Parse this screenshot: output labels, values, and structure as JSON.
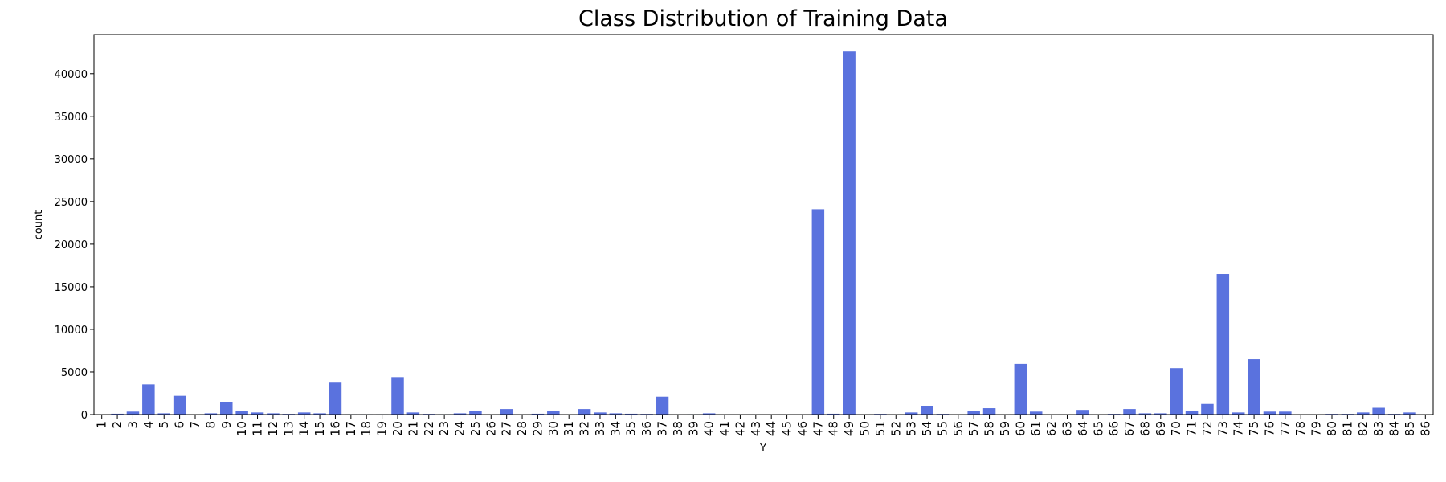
{
  "chart_data": {
    "type": "bar",
    "title": "Class Distribution of Training Data",
    "x_label": "Y",
    "y_label": "count",
    "categories": [
      "1",
      "2",
      "3",
      "4",
      "5",
      "6",
      "7",
      "8",
      "9",
      "10",
      "11",
      "12",
      "13",
      "14",
      "15",
      "16",
      "17",
      "18",
      "19",
      "20",
      "21",
      "22",
      "23",
      "24",
      "25",
      "26",
      "27",
      "28",
      "29",
      "30",
      "31",
      "32",
      "33",
      "34",
      "35",
      "36",
      "37",
      "38",
      "39",
      "40",
      "41",
      "42",
      "43",
      "44",
      "45",
      "46",
      "47",
      "48",
      "49",
      "50",
      "51",
      "52",
      "53",
      "54",
      "55",
      "56",
      "57",
      "58",
      "59",
      "60",
      "61",
      "62",
      "63",
      "64",
      "65",
      "66",
      "67",
      "68",
      "69",
      "70",
      "71",
      "72",
      "73",
      "74",
      "75",
      "76",
      "77",
      "78",
      "79",
      "80",
      "81",
      "82",
      "83",
      "84",
      "85",
      "86"
    ],
    "values": [
      30,
      100,
      350,
      3550,
      150,
      2200,
      30,
      150,
      1500,
      450,
      250,
      150,
      80,
      250,
      150,
      3750,
      50,
      50,
      50,
      4400,
      250,
      80,
      50,
      150,
      450,
      30,
      650,
      30,
      100,
      450,
      30,
      650,
      250,
      150,
      100,
      80,
      2100,
      30,
      50,
      150,
      20,
      20,
      10,
      10,
      10,
      20,
      24100,
      100,
      42600,
      20,
      80,
      30,
      250,
      950,
      80,
      30,
      450,
      750,
      30,
      5950,
      350,
      30,
      30,
      550,
      30,
      80,
      650,
      150,
      150,
      5450,
      450,
      1250,
      16500,
      250,
      6500,
      350,
      350,
      30,
      30,
      80,
      80,
      250,
      800,
      80,
      250,
      30
    ],
    "color": "#5a72de",
    "ylim": [
      0,
      44600
    ],
    "yticks": [
      0,
      5000,
      10000,
      15000,
      20000,
      25000,
      30000,
      35000,
      40000
    ]
  }
}
